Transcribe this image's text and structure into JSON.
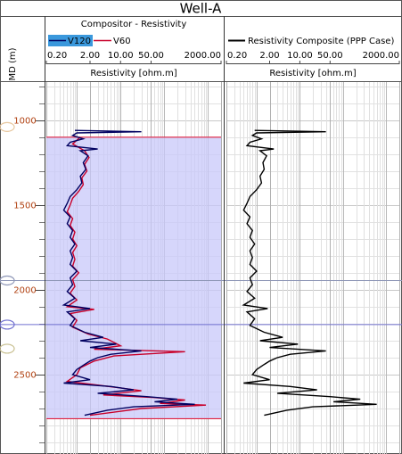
{
  "title": "Well-A",
  "depth_track": {
    "label": "MD (m)",
    "ylim": [
      775,
      2968
    ],
    "yticks": [
      1000,
      1500,
      2000,
      2500
    ],
    "markers": [
      {
        "depth": 1040,
        "color": "#e8c8a0",
        "line": false
      },
      {
        "depth": 1945,
        "color": "#9098b8",
        "line": true
      },
      {
        "depth": 2205,
        "color": "#7070d0",
        "line": true
      },
      {
        "depth": 2347,
        "color": "#c8c090",
        "line": false
      }
    ]
  },
  "chart_data": [
    {
      "type": "line",
      "title": "Compositor - Resistivity",
      "xlabel": "Resistivity [ohm.m]",
      "log_x": true,
      "grid": true,
      "xlim": [
        0.2,
        2000
      ],
      "xticks": [
        {
          "value": 0.2,
          "label": "0.20"
        },
        {
          "value": 2,
          "label": "2.00"
        },
        {
          "value": 10,
          "label": "10.00"
        },
        {
          "value": 50,
          "label": "50.00"
        },
        {
          "value": 2000,
          "label": "2000.00"
        }
      ],
      "zone": {
        "top": 1100,
        "base": 2760,
        "color": "#c8c8fa",
        "edge_color": "#e02040"
      },
      "series": [
        {
          "name": "V120",
          "color": "#000060",
          "depth": [
            1060,
            1068,
            1075,
            1090,
            1110,
            1130,
            1150,
            1170,
            1180,
            1210,
            1250,
            1290,
            1330,
            1370,
            1410,
            1450,
            1490,
            1530,
            1570,
            1610,
            1650,
            1690,
            1730,
            1770,
            1810,
            1850,
            1890,
            1930,
            1970,
            2010,
            2050,
            2090,
            2110,
            2130,
            2170,
            2210,
            2250,
            2280,
            2300,
            2320,
            2340,
            2360,
            2380,
            2400,
            2420,
            2440,
            2470,
            2500,
            2530,
            2550,
            2570,
            2590,
            2610,
            2630,
            2645,
            2660,
            2675,
            2690,
            2710,
            2740
          ],
          "values": [
            0.9,
            30,
            1.0,
            0.8,
            1.4,
            0.7,
            0.6,
            3.0,
            1.2,
            1.8,
            1.4,
            1.6,
            1.2,
            1.3,
            1.0,
            0.7,
            0.6,
            0.5,
            0.7,
            0.6,
            0.8,
            0.7,
            0.9,
            0.7,
            0.8,
            0.7,
            1.0,
            0.7,
            0.8,
            0.6,
            0.9,
            0.5,
            2.0,
            0.6,
            0.9,
            0.7,
            1.5,
            4.0,
            1.2,
            8.0,
            2.0,
            30,
            6.0,
            3.0,
            2.0,
            1.5,
            1.0,
            0.8,
            2.0,
            0.5,
            6.0,
            20,
            3.0,
            40,
            200,
            60,
            500,
            20,
            5,
            1.5
          ]
        },
        {
          "name": "V60",
          "color": "#c8002a",
          "depth": [
            1100,
            1140,
            1180,
            1220,
            1260,
            1300,
            1340,
            1380,
            1420,
            1460,
            1500,
            1540,
            1580,
            1620,
            1660,
            1700,
            1740,
            1780,
            1820,
            1860,
            1900,
            1940,
            1980,
            2020,
            2060,
            2100,
            2115,
            2140,
            2180,
            2220,
            2260,
            2290,
            2330,
            2350,
            2365,
            2390,
            2420,
            2460,
            2500,
            2540,
            2575,
            2595,
            2620,
            2635,
            2650,
            2670,
            2680,
            2700,
            2740
          ],
          "values": [
            1.2,
            0.8,
            1.5,
            1.9,
            1.5,
            1.7,
            1.3,
            1.4,
            1.1,
            0.8,
            0.7,
            0.6,
            0.8,
            0.7,
            0.9,
            0.8,
            1.0,
            0.8,
            0.9,
            0.8,
            1.1,
            0.8,
            0.9,
            0.7,
            1.0,
            0.6,
            2.5,
            0.7,
            1.0,
            0.8,
            1.8,
            5.0,
            10,
            2.5,
            300,
            7,
            2.5,
            1.2,
            1.0,
            0.6,
            8,
            30,
            4,
            60,
            300,
            80,
            900,
            30,
            2
          ]
        }
      ]
    },
    {
      "type": "line",
      "xlabel": "Resistivity [ohm.m]",
      "log_x": true,
      "grid": true,
      "xlim": [
        0.2,
        2000
      ],
      "xticks": [
        {
          "value": 0.2,
          "label": "0.20"
        },
        {
          "value": 2,
          "label": "2.00"
        },
        {
          "value": 10,
          "label": "10.00"
        },
        {
          "value": 50,
          "label": "50.00"
        },
        {
          "value": 2000,
          "label": "2000.00"
        }
      ],
      "series": [
        {
          "name": "Resistivity Composite (PPP Case)",
          "color": "#000000",
          "depth": [
            1060,
            1068,
            1075,
            1090,
            1110,
            1130,
            1150,
            1170,
            1180,
            1210,
            1250,
            1290,
            1330,
            1370,
            1410,
            1450,
            1490,
            1530,
            1570,
            1610,
            1650,
            1690,
            1730,
            1770,
            1810,
            1850,
            1890,
            1930,
            1970,
            2010,
            2050,
            2090,
            2110,
            2130,
            2170,
            2210,
            2250,
            2280,
            2300,
            2320,
            2340,
            2360,
            2380,
            2400,
            2420,
            2440,
            2470,
            2500,
            2530,
            2550,
            2570,
            2590,
            2610,
            2630,
            2645,
            2660,
            2675,
            2690,
            2710,
            2740
          ],
          "values": [
            0.9,
            40,
            1.0,
            0.8,
            1.3,
            0.7,
            0.6,
            2.5,
            1.2,
            1.7,
            1.4,
            1.5,
            1.2,
            1.3,
            1.0,
            0.7,
            0.6,
            0.5,
            0.7,
            0.6,
            0.8,
            0.7,
            0.9,
            0.7,
            0.8,
            0.7,
            1.0,
            0.7,
            0.8,
            0.6,
            0.9,
            0.5,
            1.8,
            0.6,
            0.9,
            0.7,
            1.5,
            4.0,
            1.2,
            9.0,
            2.0,
            40,
            6.0,
            3.0,
            2.0,
            1.5,
            1.0,
            0.8,
            2.0,
            0.5,
            6.0,
            25,
            3.0,
            50,
            250,
            60,
            600,
            20,
            5,
            1.5
          ]
        }
      ]
    }
  ]
}
